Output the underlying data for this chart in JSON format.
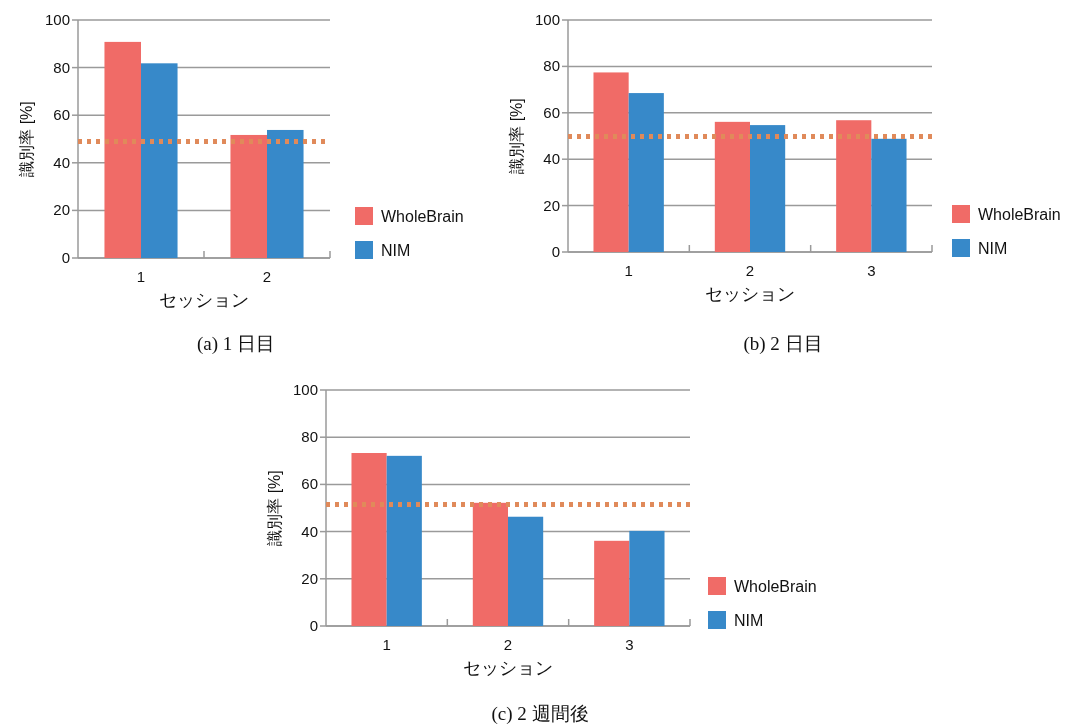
{
  "chart_data": [
    {
      "type": "bar",
      "title": "(a) 1 日目",
      "xlabel": "セッション",
      "ylabel": "識別率 [%]",
      "categories": [
        "1",
        "2"
      ],
      "series": [
        {
          "name": "WholeBrain",
          "color": "#f06b67",
          "values": [
            90.8,
            51.7
          ]
        },
        {
          "name": "NIM",
          "color": "#3789c9",
          "values": [
            81.8,
            53.8
          ]
        }
      ],
      "ylim": [
        0,
        100
      ],
      "yticks": [
        0,
        20,
        40,
        60,
        80,
        100
      ],
      "grid": "y",
      "legend": "right",
      "ref_lines": [
        {
          "axis": "y",
          "value": 49,
          "color": "#e08a5a",
          "line_style": "dotted"
        }
      ]
    },
    {
      "type": "bar",
      "title": "(b) 2 日目",
      "xlabel": "セッション",
      "ylabel": "識別率 [%]",
      "categories": [
        "1",
        "2",
        "3"
      ],
      "series": [
        {
          "name": "WholeBrain",
          "color": "#f06b67",
          "values": [
            77.4,
            56.1,
            56.8
          ]
        },
        {
          "name": "NIM",
          "color": "#3789c9",
          "values": [
            68.5,
            54.7,
            48.8
          ]
        }
      ],
      "ylim": [
        0,
        100
      ],
      "yticks": [
        0,
        20,
        40,
        60,
        80,
        100
      ],
      "grid": "y",
      "legend": "right",
      "ref_lines": [
        {
          "axis": "y",
          "value": 49.8,
          "color": "#e08a5a",
          "line_style": "dotted"
        }
      ]
    },
    {
      "type": "bar",
      "title": "(c) 2 週間後",
      "xlabel": "セッション",
      "ylabel": "識別率 [%]",
      "categories": [
        "1",
        "2",
        "3"
      ],
      "series": [
        {
          "name": "WholeBrain",
          "color": "#f06b67",
          "values": [
            73.3,
            52.2,
            36.1
          ]
        },
        {
          "name": "NIM",
          "color": "#3789c9",
          "values": [
            72.1,
            46.3,
            40.3
          ]
        }
      ],
      "ylim": [
        0,
        100
      ],
      "yticks": [
        0,
        20,
        40,
        60,
        80,
        100
      ],
      "grid": "y",
      "legend": "right",
      "ref_lines": [
        {
          "axis": "y",
          "value": 51.5,
          "color": "#e08a5a",
          "line_style": "dotted"
        }
      ]
    }
  ]
}
